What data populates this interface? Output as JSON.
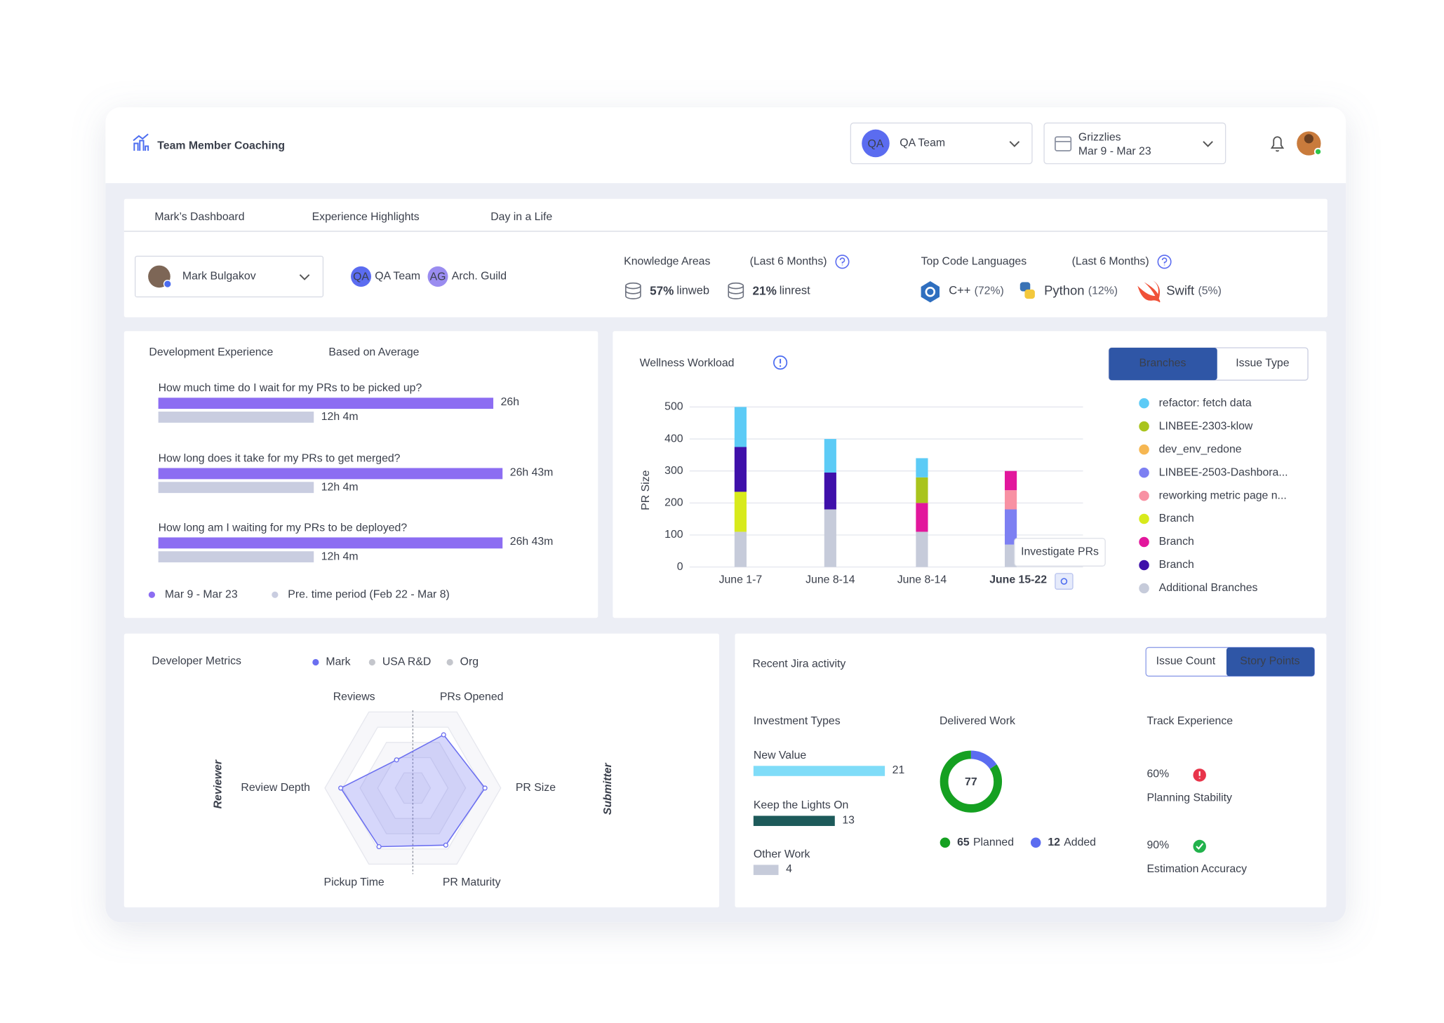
{
  "header": {
    "title": "Team Member Coaching",
    "team": {
      "badge": "QA",
      "name": "QA Team"
    },
    "sprint": {
      "name": "Grizzlies",
      "dates": "Mar 9 - Mar 23"
    }
  },
  "tabs": [
    "Mark’s Dashboard",
    "Experience Highlights",
    "Day in a Life"
  ],
  "profile": {
    "name": "Mark Bulgakov",
    "groups": [
      {
        "badge": "QA",
        "name": "QA Team"
      },
      {
        "badge": "AG",
        "name": "Arch. Guild"
      }
    ]
  },
  "knowledge_areas": {
    "title": "Knowledge Areas",
    "period": "(Last 6 Months)",
    "items": [
      {
        "share": "57%",
        "name": "linweb"
      },
      {
        "share": "21%",
        "name": "linrest"
      }
    ]
  },
  "code_languages": {
    "title": "Top Code Languages",
    "period": "(Last 6 Months)",
    "items": [
      {
        "name": "C++",
        "share": "(72%)"
      },
      {
        "name": "Python",
        "share": "(12%)"
      },
      {
        "name": "Swift",
        "share": "(5%)"
      }
    ]
  },
  "development_experience": {
    "title": "Development Experience",
    "note": "Based on Average",
    "colors": [
      "#8c6df2",
      "#c9cde0"
    ],
    "questions": [
      {
        "text": "How much time do I wait for my PRs to be picked up?",
        "current": 1560,
        "current_label": "26h",
        "previous": 724,
        "previous_label": "12h 4m"
      },
      {
        "text": "How long does it take for my PRs to get merged?",
        "current": 1603,
        "current_label": "26h 43m",
        "previous": 724,
        "previous_label": "12h 4m"
      },
      {
        "text": "How long am I waiting for my PRs to be deployed?",
        "current": 1603,
        "current_label": "26h 43m",
        "previous": 724,
        "previous_label": "12h 4m"
      }
    ],
    "legend": [
      "Mar 9 - Mar 23",
      "Pre. time period (Feb 22 - Mar 8)"
    ]
  },
  "wellness_workload": {
    "title": "Wellness Workload",
    "toggles": [
      "Branches",
      "Issue Type"
    ],
    "tooltip": "Investigate PRs",
    "chart": {
      "type": "bar",
      "stacked": true,
      "y_label": "PR Size",
      "categories": [
        "June 1-7",
        "June 8-14",
        "June 8-14",
        "June 15-22"
      ],
      "ylim": [
        0,
        500
      ],
      "yticks": [
        0,
        100,
        200,
        300,
        400,
        500
      ],
      "grid": true,
      "series": [
        {
          "name": "refactor: fetch data",
          "color": "#5ccbf6",
          "values": [
            125,
            105,
            60,
            0
          ]
        },
        {
          "name": "LINBEE-2303-klow",
          "color": "#a9c41d",
          "values": [
            0,
            0,
            80,
            0
          ]
        },
        {
          "name": "dev_env_redone",
          "color": "#f6b752",
          "values": [
            0,
            0,
            0,
            0
          ]
        },
        {
          "name": "LINBEE-2503-Dashbora...",
          "color": "#7d80f2",
          "values": [
            0,
            0,
            0,
            110
          ]
        },
        {
          "name": "reworking metric page n...",
          "color": "#f891a3",
          "values": [
            0,
            0,
            0,
            60
          ]
        },
        {
          "name": "Branch",
          "color": "#d8ea1c",
          "values": [
            125,
            0,
            0,
            0
          ]
        },
        {
          "name": "Branch",
          "color": "#e2179c",
          "values": [
            0,
            0,
            90,
            60
          ]
        },
        {
          "name": "Branch",
          "color": "#3f10aa",
          "values": [
            140,
            115,
            0,
            0
          ]
        },
        {
          "name": "Additional Branches",
          "color": "#c6cbda",
          "values": [
            110,
            180,
            110,
            70
          ]
        }
      ]
    }
  },
  "developer_metrics": {
    "title": "Developer Metrics",
    "side_labels": [
      "Reviewer",
      "Submitter"
    ],
    "chart": {
      "type": "radar",
      "axes": [
        "Reviews",
        "PRs Opened",
        "PR Size",
        "PR Maturity",
        "Pickup Time",
        "Review Depth"
      ],
      "rlim": [
        0,
        100
      ],
      "series": [
        {
          "name": "Mark",
          "color": "#6b6ff0",
          "values": [
            37,
            70,
            82,
            75,
            77,
            82
          ]
        },
        {
          "name": "USA R&D",
          "color": "#c4c6cc"
        },
        {
          "name": "Org",
          "color": "#c4c6cc"
        }
      ]
    }
  },
  "jira": {
    "title": "Recent Jira activity",
    "toggles": [
      "Issue Count",
      "Story Points"
    ],
    "investment": {
      "title": "Investment Types",
      "items": [
        {
          "name": "New Value",
          "value": 21,
          "color": "#7fdcf8"
        },
        {
          "name": "Keep the Lights On",
          "value": 13,
          "color": "#1d5a5a"
        },
        {
          "name": "Other Work",
          "value": 4,
          "color": "#c6cbda"
        }
      ]
    },
    "delivered": {
      "title": "Delivered Work",
      "total": 77,
      "parts": [
        {
          "label": "Planned",
          "value": 65,
          "color": "#15a021"
        },
        {
          "label": "Added",
          "value": 12,
          "color": "#5b6cf0"
        }
      ]
    },
    "track": {
      "title": "Track Experience",
      "items": [
        {
          "value": "60%",
          "label": "Planning Stability",
          "status": "alert"
        },
        {
          "value": "90%",
          "label": "Estimation Accuracy",
          "status": "ok"
        }
      ]
    }
  }
}
